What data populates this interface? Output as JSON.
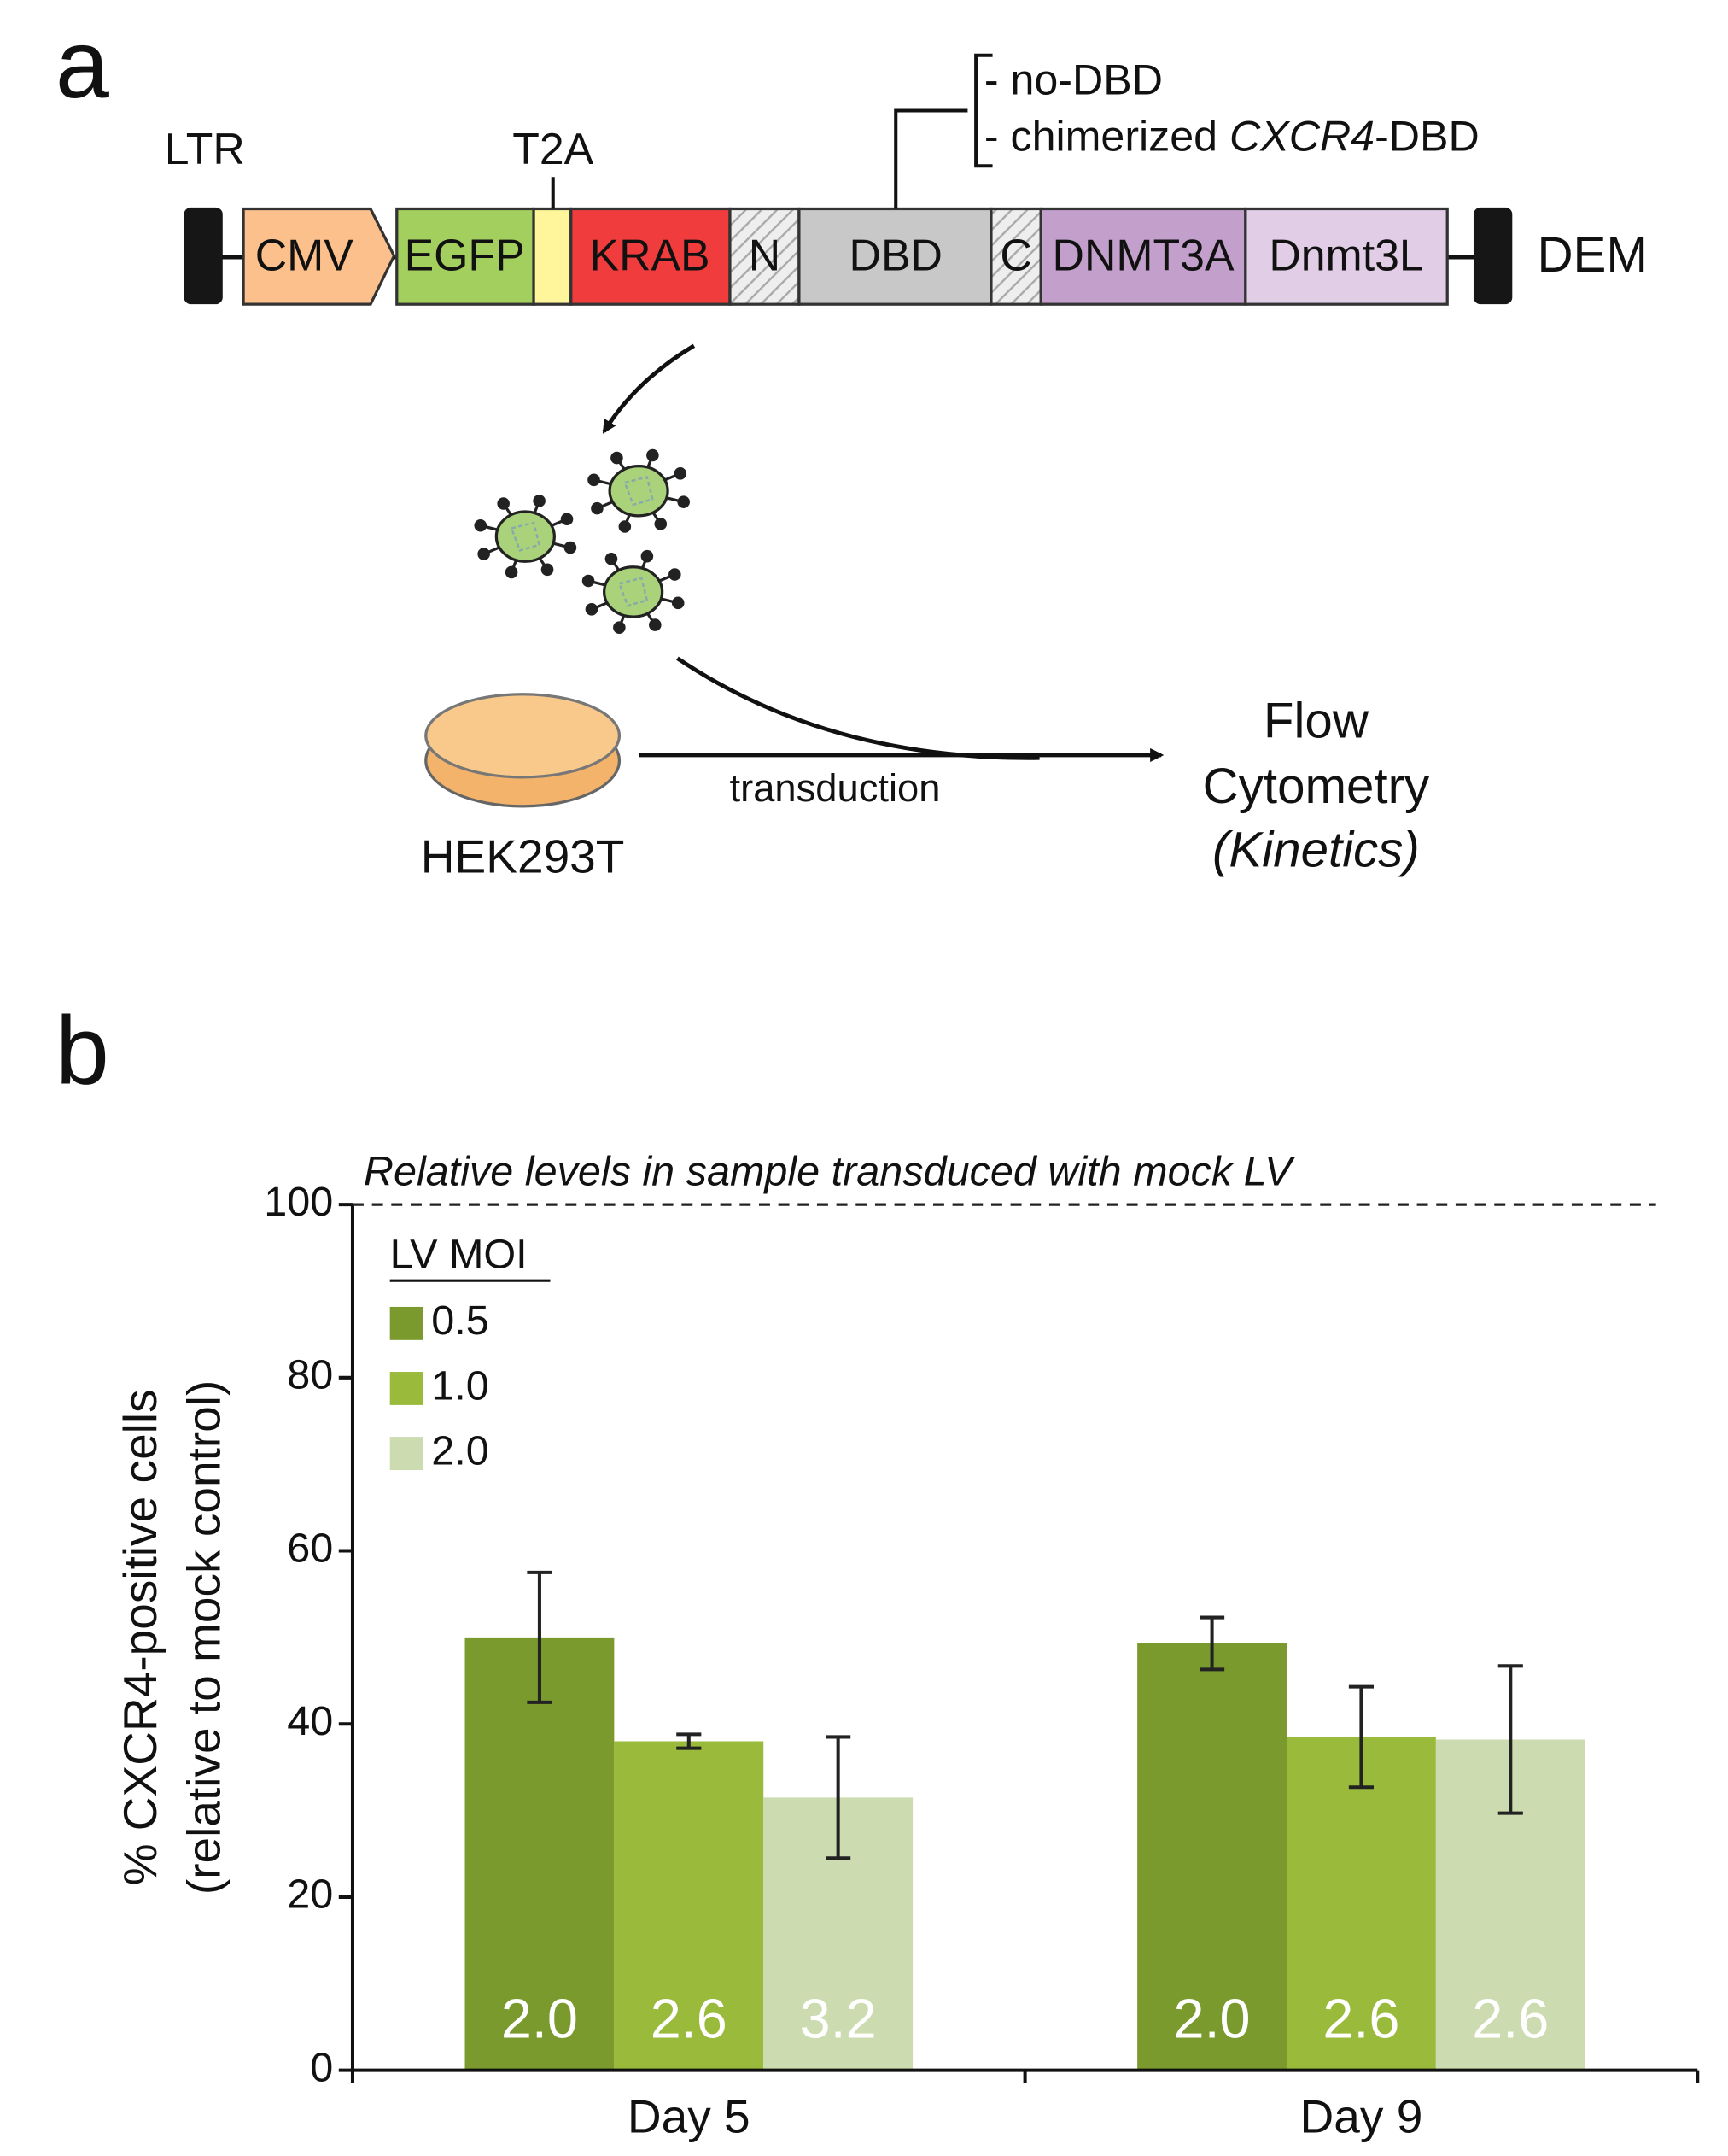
{
  "panel_a": {
    "label": "a",
    "ltr": "LTR",
    "t2a": "T2A",
    "options": [
      "- no-DBD",
      [
        "- chimerized ",
        "CXCR4",
        "-DBD"
      ]
    ],
    "elements": [
      "CMV",
      "EGFP",
      "KRAB",
      "N",
      "DBD",
      "C",
      "DNMT3A",
      "Dnmt3L"
    ],
    "construct": "DEM",
    "cells": "HEK293T",
    "transduction": "transduction",
    "readout": [
      "Flow",
      "Cytometry",
      "(Kinetics)"
    ]
  },
  "chart_data": {
    "type": "bar",
    "panel_label": "b",
    "y_label": [
      "% CXCR4-positive cells",
      "(relative to mock control)"
    ],
    "categories": [
      "Day 5",
      "Day 9"
    ],
    "legend_title": "LV MOI",
    "series": [
      {
        "name": "0.5",
        "color": "#7a9a2e",
        "values": [
          50,
          49.3
        ],
        "errors": [
          7.5,
          3
        ],
        "inner_labels": [
          "2.0",
          "2.0"
        ]
      },
      {
        "name": "1.0",
        "color": "#9aba3c",
        "values": [
          38,
          38.5
        ],
        "errors": [
          0.8,
          5.8
        ],
        "inner_labels": [
          "2.6",
          "2.6"
        ]
      },
      {
        "name": "2.0",
        "color": "#ccdcb0",
        "values": [
          31.5,
          38.2
        ],
        "errors": [
          7,
          8.5
        ],
        "inner_labels": [
          "3.2",
          "2.6"
        ]
      }
    ],
    "reference_line": {
      "value": 100,
      "label": "Relative levels in sample transduced with mock LV"
    },
    "ylim": [
      0,
      100
    ],
    "yticks": [
      0,
      20,
      40,
      60,
      80,
      100
    ],
    "legend": "upper left"
  }
}
